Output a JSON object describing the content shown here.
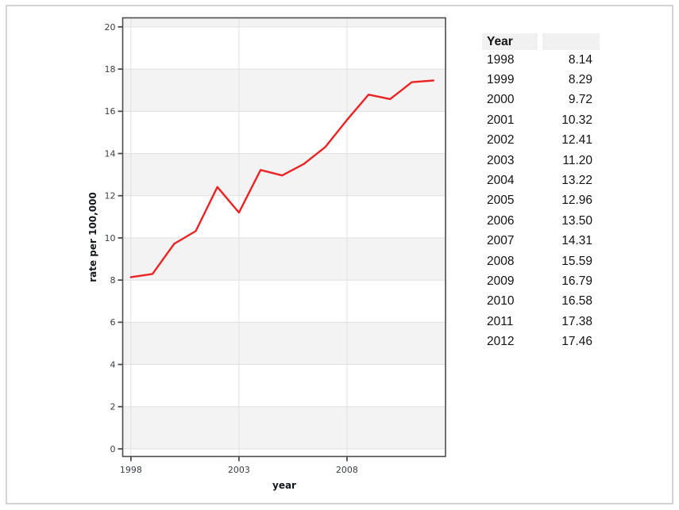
{
  "page": {
    "background": "#ffffff",
    "frame_border_color": "#d3d3d3"
  },
  "chart_data": {
    "type": "line",
    "title": "",
    "xlabel": "year",
    "ylabel": "rate per 100,000",
    "x": [
      1998,
      1999,
      2000,
      2001,
      2002,
      2003,
      2004,
      2005,
      2006,
      2007,
      2008,
      2009,
      2010,
      2011,
      2012
    ],
    "series": [
      {
        "name": "rate per 100,000",
        "color": "#ee2222",
        "values": [
          8.14,
          8.29,
          9.72,
          10.32,
          12.41,
          11.2,
          13.22,
          12.96,
          13.5,
          14.31,
          15.59,
          16.79,
          16.58,
          17.38,
          17.46
        ]
      }
    ],
    "xticks": [
      1998,
      2003,
      2008
    ],
    "yticks": [
      0,
      2,
      4,
      6,
      8,
      10,
      12,
      14,
      16,
      18,
      20
    ],
    "xlim": [
      1997.62,
      2012.56
    ],
    "ylim": [
      -0.36,
      20.43
    ],
    "grid": true,
    "legend": "none",
    "band_fill": "#f3f3f3",
    "panel_fill": "#ffffff",
    "gridline_color": "#e0e0e0",
    "axis_color": "#4d4d4d",
    "tick_label_color": "#3b4047",
    "line_width": 2.4
  },
  "table": {
    "header": [
      "Year",
      ""
    ],
    "rows": [
      [
        "1998",
        "8.14"
      ],
      [
        "1999",
        "8.29"
      ],
      [
        "2000",
        "9.72"
      ],
      [
        "2001",
        "10.32"
      ],
      [
        "2002",
        "12.41"
      ],
      [
        "2003",
        "11.20"
      ],
      [
        "2004",
        "13.22"
      ],
      [
        "2005",
        "12.96"
      ],
      [
        "2006",
        "13.50"
      ],
      [
        "2007",
        "14.31"
      ],
      [
        "2008",
        "15.59"
      ],
      [
        "2009",
        "16.79"
      ],
      [
        "2010",
        "16.58"
      ],
      [
        "2011",
        "17.38"
      ],
      [
        "2012",
        "17.46"
      ]
    ],
    "header_bg": "#f1f1f1"
  }
}
